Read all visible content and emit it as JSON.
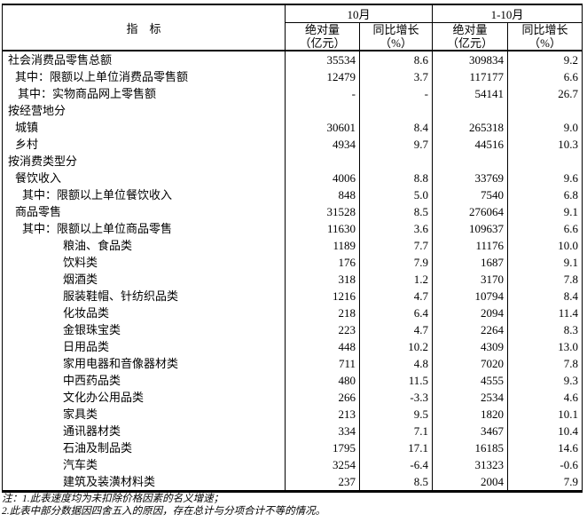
{
  "table": {
    "header": {
      "indicator": "指　标",
      "col_groups": [
        {
          "label": "10月",
          "subcols": [
            {
              "line1": "绝对量",
              "line2": "（亿元）"
            },
            {
              "line1": "同比增长",
              "line2": "（%）"
            }
          ]
        },
        {
          "label": "1-10月",
          "subcols": [
            {
              "line1": "绝对量",
              "line2": "（亿元）"
            },
            {
              "line1": "同比增长",
              "line2": "（%）"
            }
          ]
        }
      ]
    },
    "rows": [
      {
        "label": "社会消费品零售总额",
        "indent": 6,
        "values": [
          "35534",
          "8.6",
          "309834",
          "9.2"
        ]
      },
      {
        "label": "其中：限额以上单位消费品零售额",
        "indent": 14,
        "values": [
          "12479",
          "3.7",
          "117177",
          "6.6"
        ]
      },
      {
        "label": "其中：实物商品网上零售额",
        "indent": 17,
        "values": [
          "-",
          "-",
          "54141",
          "26.7"
        ]
      },
      {
        "label": "按经营地分",
        "indent": 6,
        "values": [
          "",
          "",
          "",
          ""
        ]
      },
      {
        "label": "城镇",
        "indent": 14,
        "values": [
          "30601",
          "8.4",
          "265318",
          "9.0"
        ]
      },
      {
        "label": "乡村",
        "indent": 14,
        "values": [
          "4934",
          "9.7",
          "44516",
          "10.3"
        ]
      },
      {
        "label": "按消费类型分",
        "indent": 6,
        "values": [
          "",
          "",
          "",
          ""
        ]
      },
      {
        "label": "餐饮收入",
        "indent": 14,
        "values": [
          "4006",
          "8.8",
          "33769",
          "9.6"
        ]
      },
      {
        "label": "其中：限额以上单位餐饮收入",
        "indent": 22,
        "values": [
          "848",
          "5.0",
          "7540",
          "6.8"
        ]
      },
      {
        "label": "商品零售",
        "indent": 14,
        "values": [
          "31528",
          "8.5",
          "276064",
          "9.1"
        ]
      },
      {
        "label": "其中：限额以上单位商品零售",
        "indent": 22,
        "values": [
          "11630",
          "3.6",
          "109637",
          "6.6"
        ]
      },
      {
        "label": "粮油、食品类",
        "indent": 68,
        "values": [
          "1189",
          "7.7",
          "11176",
          "10.0"
        ]
      },
      {
        "label": "饮料类",
        "indent": 68,
        "values": [
          "176",
          "7.9",
          "1687",
          "9.1"
        ]
      },
      {
        "label": "烟酒类",
        "indent": 68,
        "values": [
          "318",
          "1.2",
          "3170",
          "7.8"
        ]
      },
      {
        "label": "服装鞋帽、针纺织品类",
        "indent": 68,
        "values": [
          "1216",
          "4.7",
          "10794",
          "8.4"
        ]
      },
      {
        "label": "化妆品类",
        "indent": 68,
        "values": [
          "218",
          "6.4",
          "2094",
          "11.4"
        ]
      },
      {
        "label": "金银珠宝类",
        "indent": 68,
        "values": [
          "223",
          "4.7",
          "2264",
          "8.3"
        ]
      },
      {
        "label": "日用品类",
        "indent": 68,
        "values": [
          "448",
          "10.2",
          "4309",
          "13.0"
        ]
      },
      {
        "label": "家用电器和音像器材类",
        "indent": 68,
        "values": [
          "711",
          "4.8",
          "7020",
          "7.8"
        ]
      },
      {
        "label": "中西药品类",
        "indent": 68,
        "values": [
          "480",
          "11.5",
          "4555",
          "9.3"
        ]
      },
      {
        "label": "文化办公用品类",
        "indent": 68,
        "values": [
          "266",
          "-3.3",
          "2534",
          "4.6"
        ]
      },
      {
        "label": "家具类",
        "indent": 68,
        "values": [
          "213",
          "9.5",
          "1820",
          "10.1"
        ]
      },
      {
        "label": "通讯器材类",
        "indent": 68,
        "values": [
          "334",
          "7.1",
          "3467",
          "10.4"
        ]
      },
      {
        "label": "石油及制品类",
        "indent": 68,
        "values": [
          "1795",
          "17.1",
          "16185",
          "14.6"
        ]
      },
      {
        "label": "汽车类",
        "indent": 68,
        "values": [
          "3254",
          "-6.4",
          "31323",
          "-0.6"
        ]
      },
      {
        "label": "建筑及装潢材料类",
        "indent": 68,
        "values": [
          "237",
          "8.5",
          "2004",
          "7.9"
        ]
      }
    ]
  },
  "notes": [
    "注：1.此表速度均为未扣除价格因素的名义增速；",
    "2.此表中部分数据因四舍五入的原因，存在总计与分项合计不等的情况。"
  ]
}
